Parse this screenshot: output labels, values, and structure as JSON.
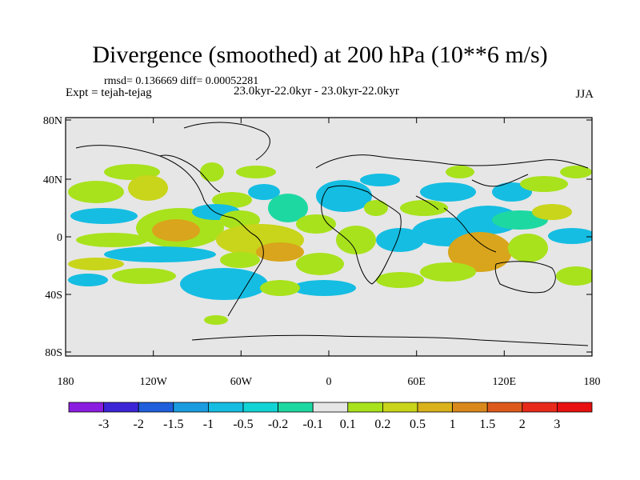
{
  "title": "Divergence (smoothed) at 200 hPa (10**6 m/s)",
  "stats": "rmsd= 0.136669 diff= 0.00052281",
  "experiment": "Expt = tejah-tejag",
  "period": "23.0kyr-22.0kyr - 23.0kyr-22.0kyr",
  "season": "JJA",
  "y_ticks": [
    "80N",
    "40N",
    "0",
    "40S",
    "80S"
  ],
  "x_ticks": [
    "180",
    "120W",
    "60W",
    "0",
    "60E",
    "120E",
    "180"
  ],
  "colorbar": {
    "labels": [
      "-3",
      "-2",
      "-1.5",
      "-1",
      "-0.5",
      "-0.2",
      "-0.1",
      "0.1",
      "0.2",
      "0.5",
      "1",
      "1.5",
      "2",
      "3"
    ],
    "colors": [
      "#8a1de0",
      "#3c25d6",
      "#1f5fdc",
      "#1c9ce0",
      "#15bde2",
      "#13d4d4",
      "#1ed8a2",
      "#e6e6e6",
      "#a8e21c",
      "#c8d51a",
      "#d9b21c",
      "#d9891c",
      "#dd5a1c",
      "#e82a1a",
      "#e81010"
    ]
  },
  "palette": {
    "ocean": "#e6e6e6",
    "green": "#a8e21c",
    "olive": "#c8d51a",
    "orange": "#d9a51c",
    "cyan": "#15bde2",
    "teal": "#1ed8a2"
  }
}
